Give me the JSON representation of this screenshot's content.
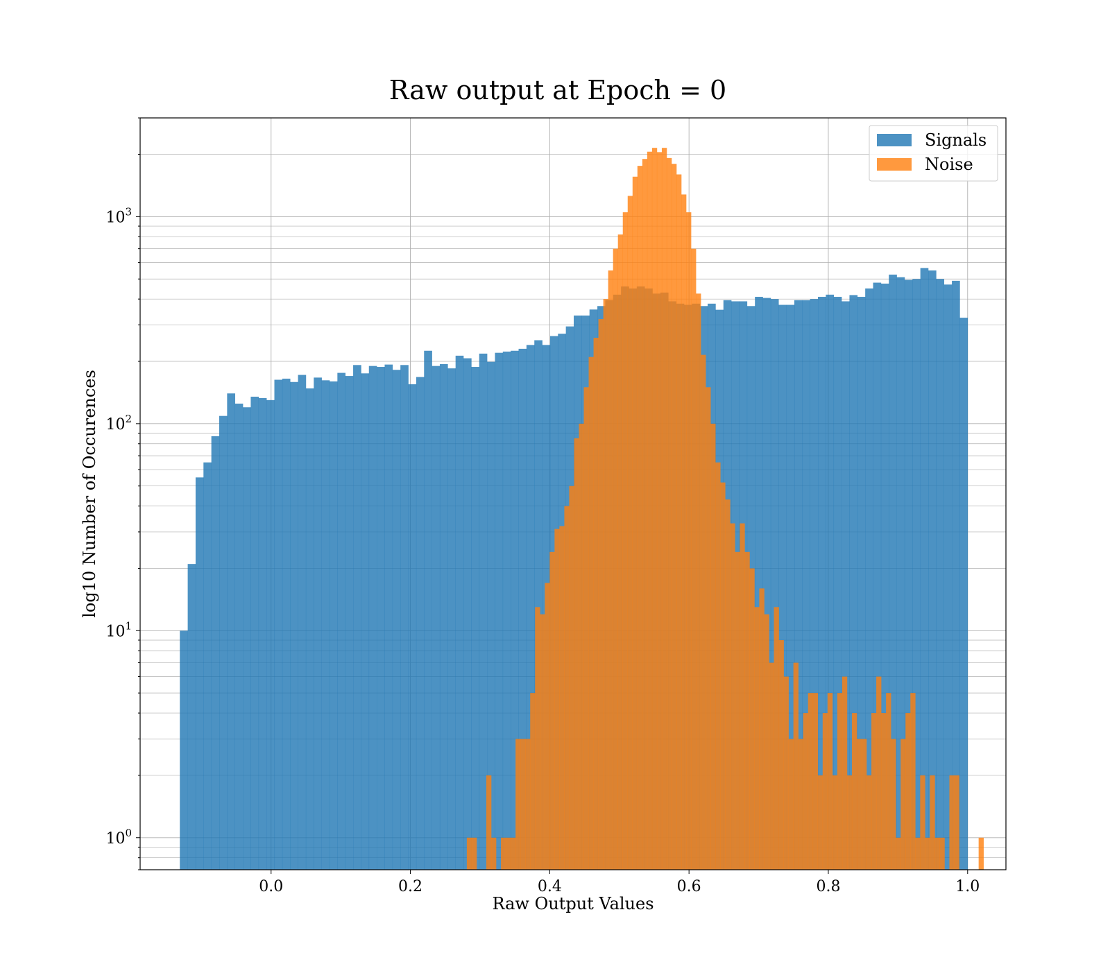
{
  "chart_data": {
    "type": "histogram",
    "title": "Raw output at Epoch = 0",
    "xlabel": "Raw Output Values",
    "ylabel": "log10 Number of Occurences",
    "xlim": [
      -0.188,
      1.055
    ],
    "ylim": [
      0.7,
      3000
    ],
    "yscale": "log",
    "grid": true,
    "legend_position": "top-right",
    "xticks": [
      {
        "value": 0.0,
        "label": "0.0"
      },
      {
        "value": 0.2,
        "label": "0.2"
      },
      {
        "value": 0.4,
        "label": "0.4"
      },
      {
        "value": 0.6,
        "label": "0.6"
      },
      {
        "value": 0.8,
        "label": "0.8"
      },
      {
        "value": 1.0,
        "label": "1.0"
      }
    ],
    "yticks": [
      {
        "value": 1,
        "base": "10",
        "exp": "0"
      },
      {
        "value": 10,
        "base": "10",
        "exp": "1"
      },
      {
        "value": 100,
        "base": "10",
        "exp": "2"
      },
      {
        "value": 1000,
        "base": "10",
        "exp": "3"
      }
    ],
    "series": [
      {
        "name": "Signals",
        "color": "#1f77b4",
        "opacity": 0.8,
        "bin_start": -0.131,
        "bin_width": 0.01131,
        "counts": [
          10,
          21,
          55,
          65,
          87,
          109,
          140,
          125,
          120,
          135,
          133,
          130,
          163,
          165,
          159,
          172,
          148,
          167,
          162,
          160,
          176,
          170,
          192,
          175,
          190,
          188,
          193,
          182,
          192,
          155,
          168,
          225,
          190,
          194,
          185,
          213,
          207,
          188,
          218,
          199,
          220,
          223,
          225,
          230,
          240,
          253,
          240,
          265,
          272,
          295,
          333,
          333,
          356,
          370,
          395,
          420,
          460,
          450,
          460,
          450,
          425,
          430,
          390,
          380,
          375,
          380,
          370,
          380,
          355,
          395,
          390,
          390,
          370,
          410,
          405,
          400,
          375,
          375,
          395,
          395,
          400,
          410,
          420,
          410,
          390,
          418,
          410,
          450,
          480,
          475,
          525,
          510,
          495,
          500,
          565,
          550,
          500,
          470,
          490,
          325
        ]
      },
      {
        "name": "Noise",
        "color": "#ff7f0e",
        "opacity": 0.8,
        "bin_start": 0.281,
        "bin_width": 0.006998,
        "counts": [
          1,
          1,
          0,
          0,
          2,
          1,
          0,
          1,
          1,
          1,
          3,
          3,
          3,
          5,
          13,
          12,
          17,
          24,
          31,
          32,
          40,
          50,
          85,
          100,
          150,
          210,
          260,
          320,
          400,
          550,
          700,
          820,
          1050,
          1260,
          1560,
          1760,
          1900,
          2060,
          2150,
          2050,
          2150,
          1920,
          1800,
          1600,
          1280,
          1050,
          700,
          425,
          215,
          150,
          100,
          65,
          52,
          43,
          33,
          24,
          33,
          24,
          20,
          13,
          16,
          12,
          7,
          13,
          9,
          6,
          3,
          7,
          3,
          4,
          5,
          5,
          2,
          4,
          5,
          2,
          5,
          6,
          2,
          4,
          3,
          3,
          2,
          4,
          6,
          4,
          5,
          3,
          1,
          3,
          4,
          5,
          1,
          2,
          1,
          2,
          1,
          1,
          0,
          2,
          2,
          0,
          0,
          0,
          0,
          1
        ]
      }
    ]
  }
}
